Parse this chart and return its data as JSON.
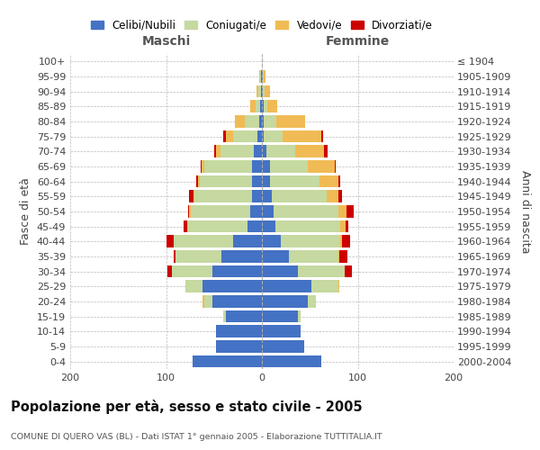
{
  "age_groups": [
    "100+",
    "95-99",
    "90-94",
    "85-89",
    "80-84",
    "75-79",
    "70-74",
    "65-69",
    "60-64",
    "55-59",
    "50-54",
    "45-49",
    "40-44",
    "35-39",
    "30-34",
    "25-29",
    "20-24",
    "15-19",
    "10-14",
    "5-9",
    "0-4"
  ],
  "birth_years": [
    "≤ 1904",
    "1905-1909",
    "1910-1914",
    "1915-1919",
    "1920-1924",
    "1925-1929",
    "1930-1934",
    "1935-1939",
    "1940-1944",
    "1945-1949",
    "1950-1954",
    "1955-1959",
    "1960-1964",
    "1965-1969",
    "1970-1974",
    "1975-1979",
    "1980-1984",
    "1985-1989",
    "1990-1994",
    "1995-1999",
    "2000-2004"
  ],
  "m_cel": [
    0,
    1,
    1,
    2,
    3,
    5,
    8,
    10,
    10,
    10,
    12,
    15,
    30,
    42,
    52,
    62,
    52,
    38,
    48,
    48,
    72
  ],
  "m_con": [
    0,
    1,
    3,
    5,
    15,
    25,
    35,
    50,
    55,
    60,
    62,
    62,
    62,
    48,
    42,
    18,
    8,
    2,
    0,
    0,
    0
  ],
  "m_ved": [
    0,
    1,
    2,
    5,
    10,
    8,
    5,
    3,
    2,
    1,
    2,
    1,
    0,
    0,
    0,
    0,
    2,
    0,
    0,
    0,
    0
  ],
  "m_div": [
    0,
    0,
    0,
    0,
    0,
    2,
    2,
    1,
    2,
    5,
    1,
    4,
    8,
    2,
    5,
    0,
    0,
    0,
    0,
    0,
    0
  ],
  "f_nub": [
    0,
    1,
    1,
    2,
    2,
    2,
    5,
    8,
    8,
    10,
    12,
    14,
    20,
    28,
    38,
    52,
    48,
    38,
    40,
    44,
    62
  ],
  "f_con": [
    0,
    1,
    2,
    4,
    13,
    20,
    30,
    40,
    52,
    58,
    68,
    68,
    62,
    52,
    48,
    28,
    8,
    2,
    0,
    0,
    0
  ],
  "f_ved": [
    0,
    2,
    5,
    10,
    30,
    40,
    30,
    28,
    20,
    12,
    8,
    5,
    2,
    1,
    0,
    1,
    0,
    0,
    0,
    0,
    0
  ],
  "f_div": [
    0,
    0,
    0,
    0,
    0,
    2,
    4,
    1,
    2,
    4,
    8,
    3,
    8,
    8,
    8,
    0,
    0,
    0,
    0,
    0,
    0
  ],
  "colors": {
    "celibi": "#4472C4",
    "coniugati": "#c5d9a0",
    "vedovi": "#f0bb55",
    "divorziati": "#cc0000"
  },
  "xlim": 200,
  "title": "Popolazione per età, sesso e stato civile - 2005",
  "subtitle": "COMUNE DI QUERO VAS (BL) - Dati ISTAT 1° gennaio 2005 - Elaborazione TUTTITALIA.IT",
  "legend_labels": [
    "Celibi/Nubili",
    "Coniugati/e",
    "Vedovi/e",
    "Divorziati/e"
  ],
  "label_maschi": "Maschi",
  "label_femmine": "Femmine",
  "ylabel_left": "Fasce di età",
  "ylabel_right": "Anni di nascita",
  "bg_color": "#ffffff",
  "grid_color": "#bbbbbb"
}
